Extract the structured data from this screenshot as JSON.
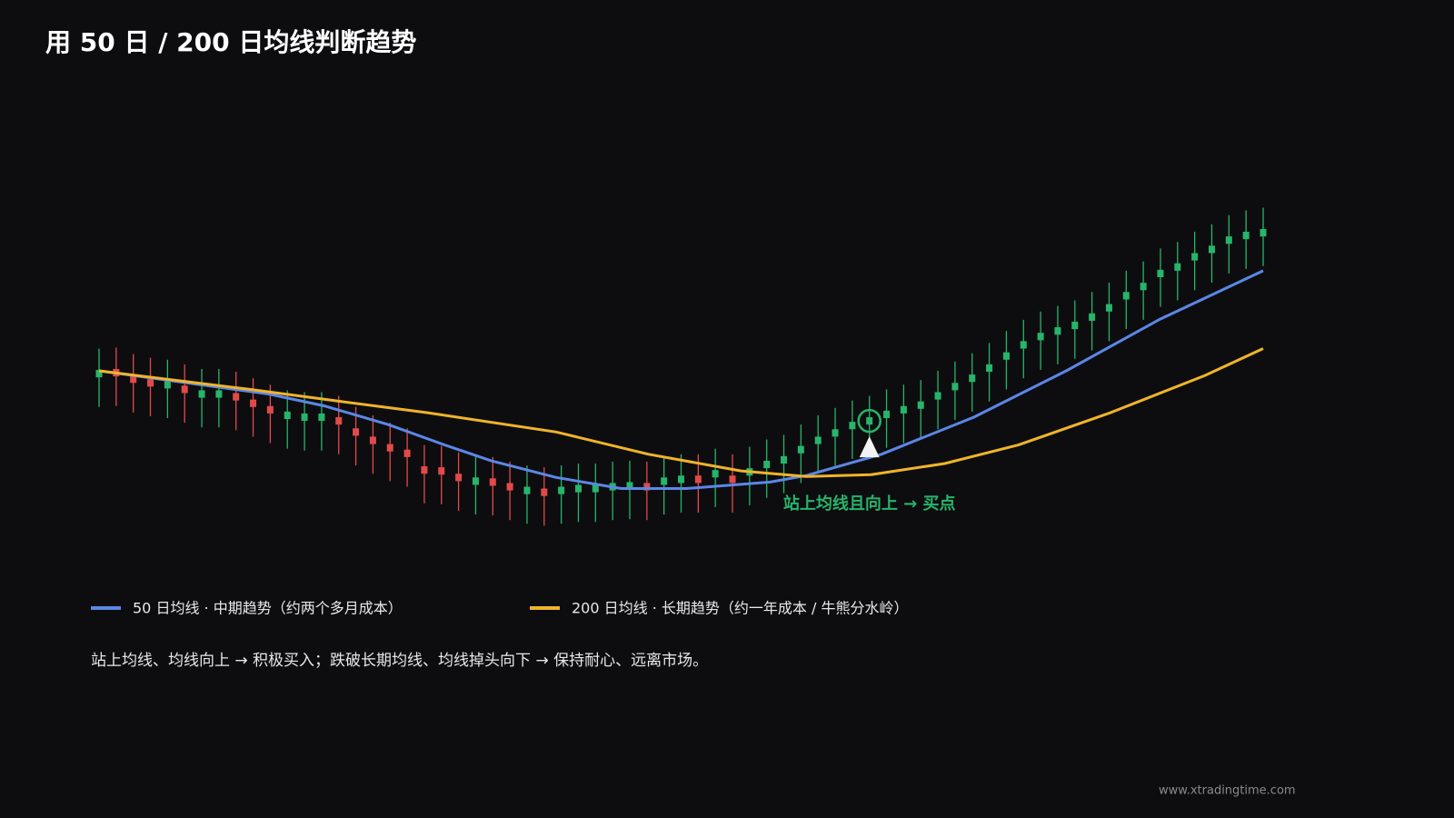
{
  "chart_data": {
    "type": "candlestick",
    "title": "用 50 日 / 200 日均线判断趋势",
    "up_color": "#27b56a",
    "down_color": "#e24a4a",
    "xlim": [
      0,
      68
    ],
    "ylim": [
      0,
      600
    ],
    "open": [
      193,
      202,
      195,
      191,
      181,
      184,
      171,
      171,
      176,
      169,
      162,
      148,
      146,
      146,
      150,
      138,
      129,
      121,
      115,
      97,
      96,
      89,
      77,
      84,
      79,
      67,
      73,
      67,
      69,
      69,
      71,
      72,
      79,
      77,
      79,
      87,
      85,
      87,
      87,
      95,
      100,
      111,
      121,
      129,
      137,
      142,
      149,
      154,
      159,
      169,
      179,
      188,
      199,
      212,
      224,
      233,
      239,
      245,
      254,
      264,
      277,
      287,
      301,
      308,
      319,
      327,
      337,
      342,
      345
    ],
    "high": [
      224,
      225,
      218,
      214,
      212,
      207,
      202,
      202,
      199,
      192,
      185,
      179,
      177,
      177,
      173,
      161,
      152,
      144,
      138,
      120,
      119,
      112,
      108,
      107,
      102,
      98,
      96,
      98,
      100,
      100,
      102,
      103,
      102,
      108,
      110,
      110,
      116,
      110,
      118,
      126,
      131,
      142,
      152,
      160,
      168,
      173,
      180,
      185,
      190,
      200,
      210,
      219,
      230,
      243,
      255,
      264,
      270,
      276,
      285,
      295,
      308,
      318,
      332,
      339,
      350,
      358,
      368,
      373,
      376
    ],
    "low": [
      161,
      162,
      155,
      151,
      149,
      144,
      139,
      139,
      136,
      129,
      122,
      116,
      114,
      114,
      110,
      98,
      89,
      81,
      75,
      57,
      56,
      49,
      45,
      44,
      39,
      35,
      33,
      35,
      37,
      37,
      39,
      40,
      39,
      45,
      47,
      47,
      53,
      47,
      55,
      63,
      68,
      79,
      89,
      97,
      105,
      110,
      117,
      122,
      127,
      137,
      147,
      156,
      167,
      180,
      192,
      201,
      207,
      213,
      222,
      232,
      245,
      255,
      269,
      276,
      287,
      295,
      305,
      310,
      313
    ],
    "close": [
      201,
      194,
      187,
      183,
      189,
      176,
      179,
      179,
      168,
      161,
      154,
      156,
      154,
      154,
      142,
      130,
      121,
      113,
      107,
      89,
      88,
      81,
      85,
      76,
      71,
      75,
      65,
      75,
      77,
      77,
      79,
      80,
      71,
      85,
      87,
      79,
      93,
      79,
      95,
      103,
      108,
      119,
      129,
      137,
      145,
      150,
      157,
      162,
      167,
      177,
      187,
      196,
      207,
      220,
      232,
      241,
      247,
      253,
      262,
      272,
      285,
      295,
      309,
      316,
      327,
      335,
      345,
      350,
      353
    ],
    "series": [
      {
        "name": "50 日均线 · 中期趋势（约两个多月成本）",
        "color": "#5b87e6",
        "x": [
          0,
          9.9,
          13.2,
          16.9,
          20.2,
          22.9,
          26.7,
          30.5,
          34.3,
          39.2,
          41.3,
          45.7,
          51.1,
          56.5,
          61.9,
          68
        ],
        "values": [
          200,
          175,
          162,
          142,
          120,
          103,
          85,
          73,
          73,
          80,
          87,
          110,
          150,
          200,
          255,
          308
        ]
      },
      {
        "name": "200 日均线 · 长期趋势（约一年成本 / 牛熊分水岭）",
        "color": "#f0b429",
        "x": [
          0,
          8.8,
          13.7,
          19.1,
          26.7,
          32.1,
          37.5,
          41.3,
          45.1,
          49.4,
          53.7,
          59.1,
          64.6,
          68
        ],
        "values": [
          200,
          180,
          168,
          155,
          134,
          110,
          92,
          86,
          88,
          100,
          120,
          155,
          195,
          224
        ]
      }
    ],
    "annotation": {
      "text": "站上均线且向上 → 买点",
      "index": 45,
      "color": "#27b56a"
    },
    "note": "站上均线、均线向上 → 积极买入；跌破长期均线、均线掉头向下 → 保持耐心、远离市场。",
    "footer": "www.xtradingtime.com"
  }
}
